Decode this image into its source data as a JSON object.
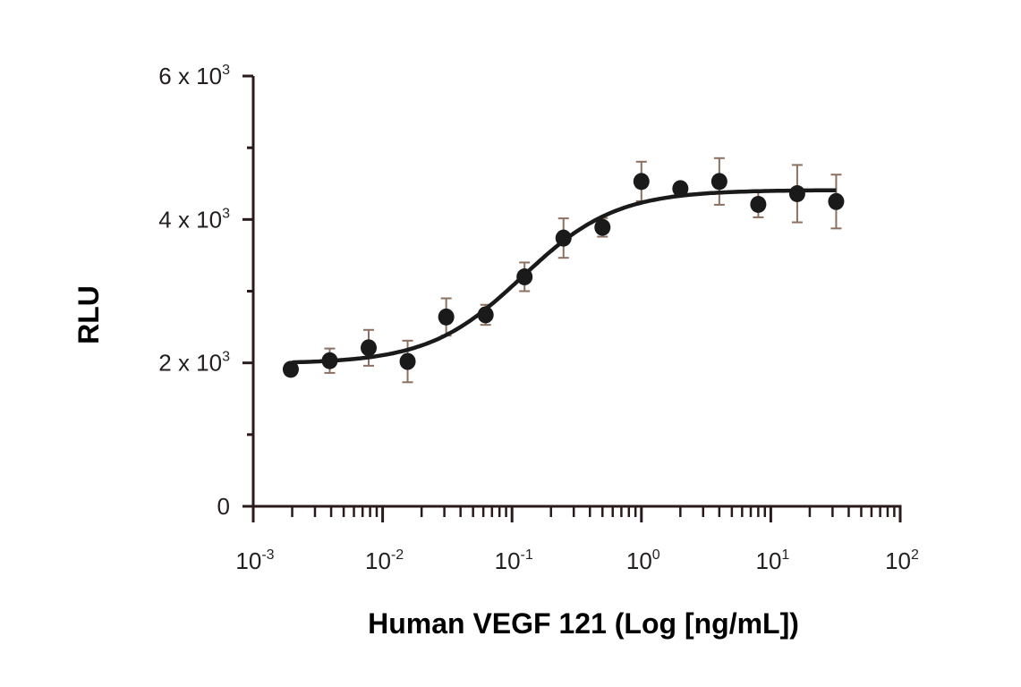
{
  "chart_data": {
    "type": "scatter",
    "title": "",
    "xlabel": "Human VEGF 121 (Log [ng/mL])",
    "ylabel": "RLU",
    "xscale": "log",
    "xlim": [
      0.001,
      100
    ],
    "ylim": [
      0,
      6000
    ],
    "grid": false,
    "legend": "none",
    "x_ticks": [
      {
        "base": "10",
        "exp": "-3",
        "value": 0.001
      },
      {
        "base": "10",
        "exp": "-2",
        "value": 0.01
      },
      {
        "base": "10",
        "exp": "-1",
        "value": 0.1
      },
      {
        "base": "10",
        "exp": "0",
        "value": 1
      },
      {
        "base": "10",
        "exp": "1",
        "value": 10
      },
      {
        "base": "10",
        "exp": "2",
        "value": 100
      }
    ],
    "y_ticks": [
      {
        "label": "0",
        "exp": "",
        "value": 0
      },
      {
        "label": "2 x 10",
        "exp": "3",
        "value": 2000
      },
      {
        "label": "4 x 10",
        "exp": "3",
        "value": 4000
      },
      {
        "label": "6 x 10",
        "exp": "3",
        "value": 6000
      }
    ],
    "y_minor_ticks": [
      1000,
      3000,
      5000
    ],
    "points": [
      {
        "x": 0.00195,
        "y": 1910,
        "err": 60
      },
      {
        "x": 0.0039,
        "y": 2030,
        "err": 170
      },
      {
        "x": 0.0078,
        "y": 2210,
        "err": 250
      },
      {
        "x": 0.0156,
        "y": 2020,
        "err": 290
      },
      {
        "x": 0.031,
        "y": 2640,
        "err": 260
      },
      {
        "x": 0.0625,
        "y": 2670,
        "err": 140
      },
      {
        "x": 0.125,
        "y": 3200,
        "err": 200
      },
      {
        "x": 0.25,
        "y": 3740,
        "err": 275
      },
      {
        "x": 0.5,
        "y": 3890,
        "err": 130
      },
      {
        "x": 1,
        "y": 4530,
        "err": 275
      },
      {
        "x": 2,
        "y": 4430,
        "err": 80
      },
      {
        "x": 4,
        "y": 4530,
        "err": 325
      },
      {
        "x": 8,
        "y": 4210,
        "err": 180
      },
      {
        "x": 16,
        "y": 4360,
        "err": 400
      },
      {
        "x": 32,
        "y": 4250,
        "err": 375
      }
    ],
    "fit": {
      "model": "4PL",
      "bottom": 1990,
      "top": 4410,
      "ec50": 0.12,
      "hill": 1.2,
      "x_range": [
        0.002,
        32
      ]
    },
    "colors": {
      "axis": "#2b1a1c",
      "points": "#1a1a1a",
      "curve": "#1a1a1a",
      "error_bars": "#8c7060"
    }
  }
}
